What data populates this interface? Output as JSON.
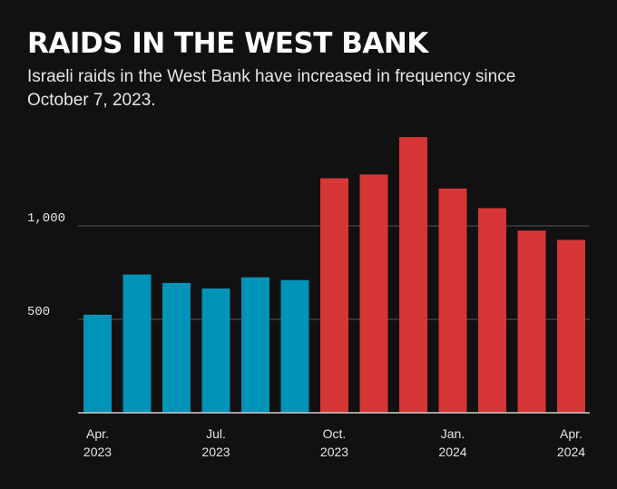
{
  "title": "RAIDS IN THE WEST BANK",
  "subtitle": "Israeli raids in the West Bank have increased in frequency since October 7, 2023.",
  "colors": {
    "background": "#111111",
    "before": "#0093b8",
    "after": "#d63636",
    "grid": "#555555",
    "axis": "#cccccc"
  },
  "chart_data": {
    "type": "bar",
    "categories": [
      "2023-04",
      "2023-05",
      "2023-06",
      "2023-07",
      "2023-08",
      "2023-09",
      "2023-10",
      "2023-11",
      "2023-12",
      "2024-01",
      "2024-02",
      "2024-03",
      "2024-04"
    ],
    "values": [
      525,
      740,
      695,
      665,
      725,
      710,
      1255,
      1275,
      1475,
      1200,
      1095,
      975,
      925
    ],
    "series_color_key": [
      "before",
      "before",
      "before",
      "before",
      "before",
      "before",
      "after",
      "after",
      "after",
      "after",
      "after",
      "after",
      "after"
    ],
    "ylim": [
      0,
      1500
    ],
    "y_ticks": [
      {
        "value": 500,
        "label": "500"
      },
      {
        "value": 1000,
        "label": "1,000"
      }
    ],
    "x_tick_labels": [
      {
        "index": 0,
        "month": "Apr.",
        "year": "2023"
      },
      {
        "index": 3,
        "month": "Jul.",
        "year": "2023"
      },
      {
        "index": 6,
        "month": "Oct.",
        "year": "2023"
      },
      {
        "index": 9,
        "month": "Jan.",
        "year": "2024"
      },
      {
        "index": 12,
        "month": "Apr.",
        "year": "2024"
      }
    ],
    "grid": true,
    "legend": false
  }
}
